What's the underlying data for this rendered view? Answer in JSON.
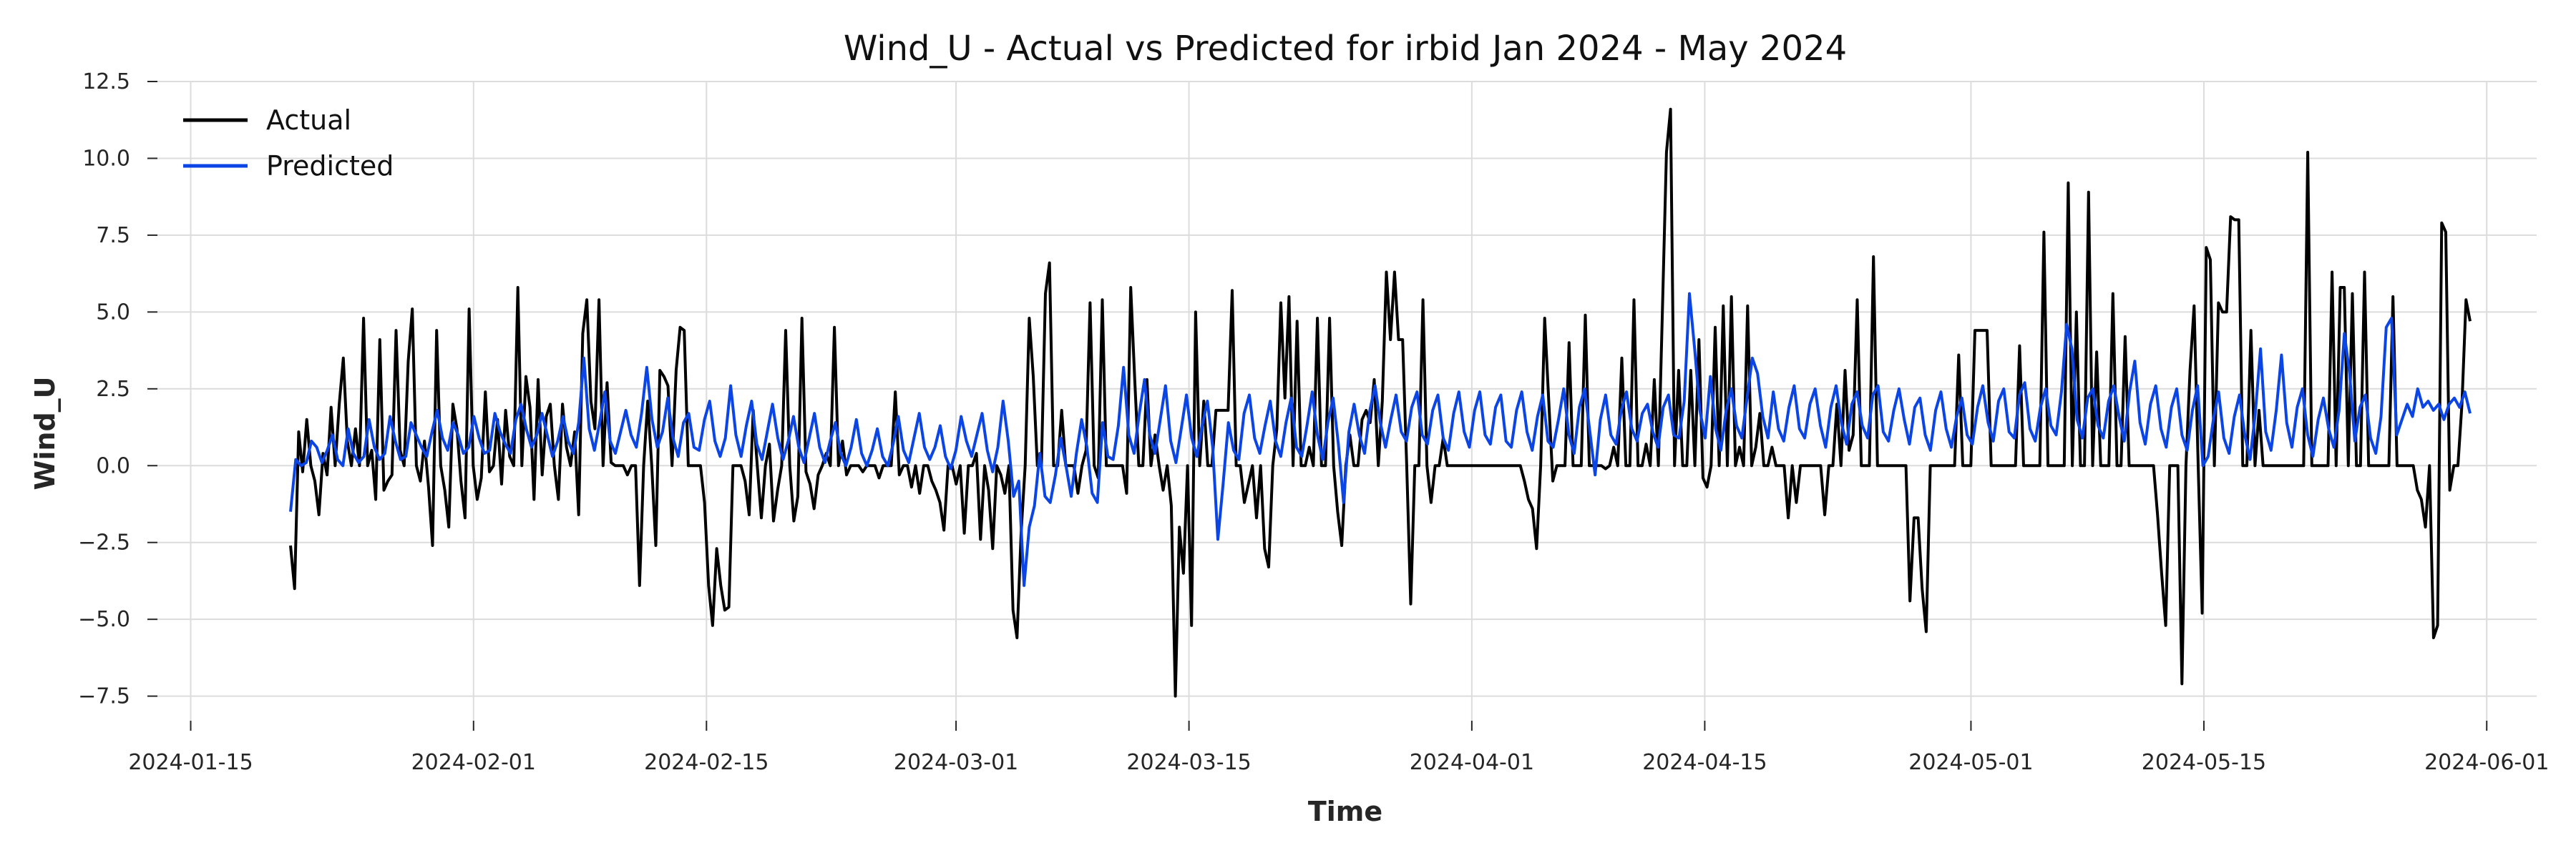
{
  "chart_data": {
    "type": "line",
    "title": "Wind_U - Actual vs Predicted for irbid Jan 2024 - May 2024",
    "xlabel": "Time",
    "ylabel": "Wind_U",
    "x_start": "2024-01-21T00:00:00",
    "x_end": "2024-05-31T00:00:00",
    "xlim": [
      "2024-01-13",
      "2024-06-04"
    ],
    "ylim": [
      -8.3,
      12.5
    ],
    "x_ticks": [
      "2024-01-15",
      "2024-02-01",
      "2024-02-15",
      "2024-03-01",
      "2024-03-15",
      "2024-04-01",
      "2024-04-15",
      "2024-05-01",
      "2024-05-15",
      "2024-06-01"
    ],
    "y_ticks": [
      12.5,
      10.0,
      7.5,
      5.0,
      2.5,
      0.0,
      -2.5,
      -5.0,
      -7.5
    ],
    "y_tick_labels": [
      "12.5",
      "10.0",
      "7.5",
      "5.0",
      "2.5",
      "0.0",
      "−2.5",
      "−5.0",
      "−7.5"
    ],
    "grid": true,
    "legend_position": "top-left",
    "series": [
      {
        "name": "Actual",
        "color": "#000000",
        "values": [
          -2.6,
          -4.0,
          1.1,
          -0.2,
          1.5,
          0.0,
          -0.5,
          -1.6,
          0.4,
          -0.3,
          1.9,
          0.0,
          2.0,
          3.5,
          0.8,
          0.0,
          1.2,
          0.0,
          4.8,
          0.0,
          0.5,
          -1.1,
          4.1,
          -0.8,
          -0.5,
          -0.3,
          4.4,
          0.5,
          0.0,
          3.4,
          5.1,
          0.0,
          -0.5,
          0.8,
          -0.7,
          -2.6,
          4.4,
          0.0,
          -0.8,
          -2.0,
          2.0,
          1.2,
          -0.5,
          -1.7,
          5.1,
          0.0,
          -1.1,
          -0.4,
          2.4,
          -0.2,
          0.0,
          1.5,
          -0.6,
          1.8,
          0.3,
          0.0,
          5.8,
          0.0,
          2.9,
          1.9,
          -1.1,
          2.8,
          -0.3,
          1.6,
          2.0,
          0.0,
          -1.1,
          2.0,
          0.6,
          0.0,
          1.1,
          -1.6,
          4.3,
          5.4,
          2.1,
          1.2,
          5.4,
          0.0,
          2.7,
          0.1,
          0.0,
          0.0,
          0.0,
          -0.3,
          0.0,
          0.0,
          -3.9,
          0.0,
          2.1,
          0.0,
          -2.6,
          3.1,
          2.9,
          2.6,
          0.0,
          3.1,
          4.5,
          4.4,
          0.0,
          0.0,
          0.0,
          0.0,
          -1.2,
          -3.9,
          -5.2,
          -2.7,
          -3.9,
          -4.7,
          -4.6,
          0.0,
          0.0,
          0.0,
          -0.5,
          -1.6,
          1.8,
          0.0,
          -1.7,
          0.0,
          0.7,
          -1.8,
          -0.8,
          0.0,
          4.4,
          0.0,
          -1.8,
          -1.0,
          4.8,
          -0.2,
          -0.6,
          -1.4,
          -0.3,
          0.0,
          0.4,
          0.0,
          4.5,
          0.0,
          0.8,
          -0.3,
          0.0,
          0.0,
          0.0,
          -0.2,
          0.0,
          0.0,
          0.0,
          -0.4,
          0.0,
          0.0,
          0.0,
          2.4,
          -0.3,
          0.0,
          0.0,
          -0.7,
          0.0,
          -0.9,
          0.0,
          0.0,
          -0.5,
          -0.8,
          -1.2,
          -2.1,
          0.0,
          0.0,
          -0.6,
          0.0,
          -2.2,
          0.0,
          0.0,
          0.4,
          -2.4,
          0.0,
          -0.8,
          -2.7,
          0.0,
          -0.3,
          -0.9,
          0.0,
          -4.7,
          -5.6,
          -2.2,
          0.0,
          4.8,
          2.9,
          0.0,
          0.0,
          5.6,
          6.6,
          0.0,
          0.0,
          1.8,
          0.0,
          0.0,
          0.0,
          -0.9,
          0.0,
          0.5,
          5.3,
          0.0,
          -0.4,
          5.4,
          0.0,
          0.0,
          0.0,
          0.0,
          0.0,
          -0.9,
          5.8,
          2.8,
          0.0,
          0.0,
          2.8,
          0.0,
          1.0,
          0.0,
          -0.8,
          0.0,
          -1.3,
          -7.5,
          -2.0,
          -3.5,
          0.0,
          -5.2,
          5.0,
          0.0,
          2.1,
          0.0,
          0.0,
          1.8,
          1.8,
          1.8,
          1.8,
          5.7,
          0.0,
          0.0,
          -1.2,
          -0.6,
          0.0,
          -1.7,
          0.0,
          -2.7,
          -3.3,
          0.0,
          1.2,
          5.3,
          2.2,
          5.5,
          0.0,
          4.7,
          0.0,
          0.0,
          0.6,
          0.0,
          4.8,
          0.0,
          0.0,
          4.8,
          0.0,
          -1.5,
          -2.6,
          0.0,
          1.0,
          0.0,
          0.0,
          1.5,
          1.8,
          1.4,
          2.8,
          0.0,
          2.1,
          6.3,
          4.1,
          6.3,
          4.1,
          4.1,
          0.0,
          -4.5,
          0.0,
          0.0,
          5.4,
          0.0,
          -1.2,
          0.0,
          0.0,
          0.9,
          0.0,
          0.0,
          0.0,
          0.0,
          0.0,
          0.0,
          0.0,
          0.0,
          0.0,
          0.0,
          0.0,
          0.0,
          0.0,
          0.0,
          0.0,
          0.0,
          0.0,
          0.0,
          0.0,
          -0.5,
          -1.1,
          -1.4,
          -2.7,
          0.0,
          4.8,
          2.1,
          -0.5,
          0.0,
          0.0,
          0.0,
          4.0,
          0.0,
          0.0,
          0.0,
          4.9,
          0.0,
          0.0,
          0.0,
          0.0,
          -0.1,
          0.0,
          0.6,
          0.0,
          3.5,
          0.0,
          0.0,
          5.4,
          0.0,
          0.0,
          0.7,
          0.0,
          2.8,
          0.0,
          5.0,
          10.2,
          11.6,
          0.0,
          3.1,
          0.0,
          0.0,
          3.1,
          0.0,
          4.1,
          -0.4,
          -0.7,
          0.0,
          4.5,
          0.0,
          5.2,
          0.0,
          5.5,
          0.0,
          0.6,
          0.0,
          5.2,
          0.0,
          0.6,
          1.7,
          0.0,
          0.0,
          0.6,
          0.0,
          0.0,
          0.0,
          -1.7,
          0.0,
          -1.2,
          0.0,
          0.0,
          0.0,
          0.0,
          0.0,
          0.0,
          -1.6,
          0.0,
          0.0,
          2.0,
          0.0,
          3.1,
          0.5,
          1.0,
          5.4,
          0.0,
          0.0,
          0.0,
          6.8,
          0.0,
          0.0,
          0.0,
          0.0,
          0.0,
          0.0,
          0.0,
          0.0,
          -4.4,
          -1.7,
          -1.7,
          -4.0,
          -5.4,
          0.0,
          0.0,
          0.0,
          0.0,
          0.0,
          0.0,
          0.0,
          3.6,
          0.0,
          0.0,
          0.0,
          4.4,
          4.4,
          4.4,
          4.4,
          0.0,
          0.0,
          0.0,
          0.0,
          0.0,
          0.0,
          0.0,
          3.9,
          0.0,
          0.0,
          0.0,
          0.0,
          0.0,
          7.6,
          0.0,
          0.0,
          0.0,
          0.0,
          0.0,
          9.2,
          0.0,
          5.0,
          0.0,
          0.0,
          8.9,
          0.0,
          3.7,
          0.0,
          0.0,
          0.0,
          5.6,
          0.0,
          0.0,
          4.2,
          0.0,
          0.0,
          0.0,
          0.0,
          0.0,
          0.0,
          0.0,
          -1.6,
          -3.5,
          -5.2,
          0.0,
          0.0,
          0.0,
          -7.1,
          0.0,
          3.1,
          5.2,
          0.0,
          -4.8,
          7.1,
          6.7,
          0.0,
          5.3,
          5.0,
          5.0,
          8.1,
          8.0,
          8.0,
          0.0,
          0.0,
          4.4,
          0.0,
          1.8,
          0.0,
          0.0,
          0.0,
          0.0,
          0.0,
          0.0,
          0.0,
          0.0,
          0.0,
          0.0,
          0.0,
          10.2,
          0.0,
          0.0,
          0.0,
          0.0,
          0.0,
          6.3,
          0.0,
          5.8,
          5.8,
          0.0,
          5.6,
          0.0,
          0.0,
          6.3,
          0.0,
          0.0,
          0.0,
          0.0,
          0.0,
          0.0,
          5.5,
          0.0,
          0.0,
          0.0,
          0.0,
          0.0,
          -0.8,
          -1.1,
          -2.0,
          0.0,
          -5.6,
          -5.2,
          7.9,
          7.6,
          -0.8,
          0.0,
          0.0,
          2.0,
          5.4,
          4.7
        ]
      },
      {
        "name": "Predicted",
        "color": "#0b45e6",
        "values": [
          -1.5,
          0.2,
          0.0,
          0.1,
          0.8,
          0.6,
          0.1,
          0.5,
          1.0,
          0.2,
          0.0,
          1.2,
          0.4,
          0.1,
          0.3,
          1.5,
          0.6,
          0.2,
          0.4,
          1.6,
          0.8,
          0.2,
          0.3,
          1.4,
          1.0,
          0.6,
          0.3,
          1.1,
          1.8,
          0.9,
          0.5,
          1.4,
          1.0,
          0.4,
          0.6,
          1.6,
          0.9,
          0.4,
          0.5,
          1.7,
          1.1,
          0.7,
          0.4,
          1.5,
          2.0,
          1.2,
          0.6,
          1.0,
          1.7,
          1.0,
          0.3,
          0.8,
          1.6,
          0.8,
          0.4,
          1.4,
          3.5,
          1.2,
          0.5,
          1.4,
          2.4,
          0.8,
          0.4,
          1.1,
          1.8,
          1.0,
          0.6,
          1.7,
          3.2,
          1.5,
          0.6,
          1.1,
          2.2,
          0.9,
          0.3,
          1.4,
          1.7,
          0.6,
          0.5,
          1.5,
          2.1,
          0.8,
          0.3,
          0.9,
          2.6,
          1.0,
          0.3,
          1.3,
          2.1,
          0.7,
          0.2,
          1.1,
          2.0,
          0.9,
          0.2,
          0.8,
          1.6,
          0.6,
          0.1,
          0.9,
          1.7,
          0.6,
          0.1,
          0.8,
          1.4,
          0.4,
          0.0,
          0.6,
          1.5,
          0.4,
          0.0,
          0.5,
          1.2,
          0.3,
          0.0,
          0.7,
          1.6,
          0.5,
          0.1,
          0.9,
          1.7,
          0.6,
          0.2,
          0.6,
          1.3,
          0.3,
          -0.1,
          0.5,
          1.6,
          0.8,
          0.3,
          1.0,
          1.7,
          0.5,
          -0.2,
          0.6,
          2.1,
          0.8,
          -1.0,
          -0.5,
          -3.9,
          -2.0,
          -1.3,
          0.4,
          -1.0,
          -1.2,
          -0.3,
          0.9,
          0.0,
          -1.0,
          0.4,
          1.5,
          0.6,
          -0.9,
          -1.2,
          1.4,
          0.3,
          0.2,
          1.3,
          3.2,
          1.0,
          0.4,
          1.7,
          2.8,
          1.0,
          0.4,
          1.5,
          2.6,
          0.8,
          0.1,
          1.2,
          2.3,
          0.9,
          0.3,
          1.3,
          2.1,
          0.6,
          -2.4,
          -0.6,
          1.4,
          0.5,
          0.2,
          1.7,
          2.3,
          0.9,
          0.4,
          1.3,
          2.1,
          0.8,
          0.3,
          1.4,
          2.2,
          0.6,
          0.3,
          1.3,
          2.4,
          1.0,
          0.2,
          1.4,
          2.2,
          0.7,
          -1.2,
          1.1,
          2.0,
          1.0,
          0.4,
          1.8,
          2.6,
          1.4,
          0.6,
          1.5,
          2.3,
          1.1,
          0.8,
          1.9,
          2.4,
          1.0,
          0.7,
          1.8,
          2.3,
          0.9,
          0.5,
          1.7,
          2.4,
          1.1,
          0.6,
          1.8,
          2.4,
          1.0,
          0.7,
          1.9,
          2.3,
          0.8,
          0.6,
          1.8,
          2.4,
          1.1,
          0.5,
          1.6,
          2.3,
          0.8,
          0.6,
          1.5,
          2.5,
          1.0,
          0.4,
          1.9,
          2.5,
          1.1,
          -0.3,
          1.5,
          2.3,
          1.0,
          0.7,
          1.8,
          2.4,
          1.2,
          0.8,
          1.7,
          2.0,
          1.1,
          0.6,
          1.9,
          2.3,
          1.0,
          0.9,
          2.1,
          5.6,
          3.8,
          1.8,
          0.9,
          2.9,
          1.2,
          0.5,
          1.8,
          2.5,
          1.3,
          0.9,
          2.2,
          3.5,
          3.0,
          1.6,
          0.9,
          2.4,
          1.2,
          0.8,
          1.9,
          2.6,
          1.2,
          0.9,
          2.0,
          2.5,
          1.3,
          0.6,
          1.9,
          2.6,
          1.4,
          0.7,
          2.0,
          2.4,
          1.3,
          0.9,
          2.3,
          2.6,
          1.1,
          0.8,
          1.8,
          2.5,
          1.5,
          0.7,
          1.9,
          2.2,
          1.0,
          0.5,
          1.8,
          2.4,
          1.2,
          0.6,
          1.6,
          2.2,
          1.0,
          0.7,
          1.9,
          2.6,
          1.4,
          0.8,
          2.1,
          2.5,
          1.1,
          0.9,
          2.3,
          2.7,
          1.2,
          0.8,
          1.9,
          2.5,
          1.3,
          1.0,
          2.4,
          4.6,
          3.8,
          1.5,
          0.9,
          2.2,
          2.5,
          1.3,
          0.9,
          2.1,
          2.6,
          1.6,
          0.8,
          2.4,
          3.4,
          1.4,
          0.7,
          2.0,
          2.6,
          1.2,
          0.6,
          1.9,
          2.5,
          1.0,
          0.5,
          1.8,
          2.6,
          0.0,
          0.3,
          1.5,
          2.4,
          0.9,
          0.4,
          1.6,
          2.3,
          1.0,
          0.2,
          1.7,
          3.8,
          1.1,
          0.5,
          1.8,
          3.6,
          1.4,
          0.6,
          1.9,
          2.5,
          1.0,
          0.3,
          1.5,
          2.2,
          1.2,
          0.6,
          1.8,
          4.3,
          3.0,
          0.8,
          1.9,
          2.3,
          0.9,
          0.4,
          1.6,
          4.5,
          4.8,
          1.0,
          1.5,
          2.0,
          1.6,
          2.5,
          1.9,
          2.1,
          1.8,
          2.0,
          1.5,
          2.0,
          2.2,
          1.9,
          2.4,
          1.7
        ]
      }
    ]
  }
}
